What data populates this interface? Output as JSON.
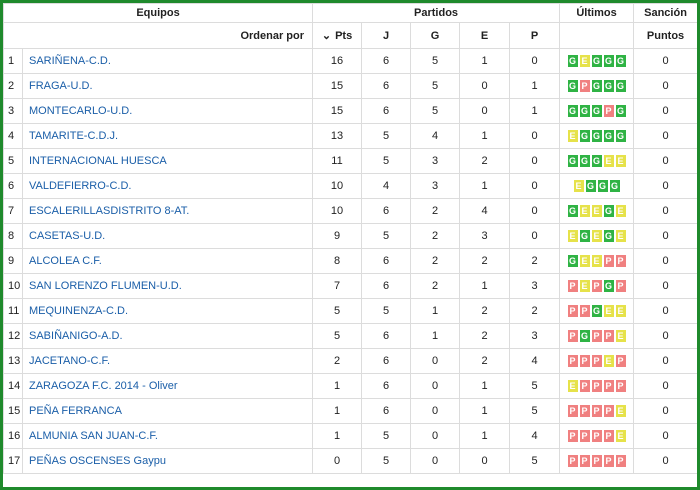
{
  "headers": {
    "equipos": "Equipos",
    "partidos": "Partidos",
    "ultimos": "Últimos",
    "sancion": "Sanción",
    "ordenar_por": "Ordenar por",
    "pts": "Pts",
    "j": "J",
    "g": "G",
    "e": "E",
    "p": "P",
    "puntos": "Puntos"
  },
  "colors": {
    "G": "#2fb344",
    "E": "#e6e24a",
    "P": "#f08080",
    "link": "#1a5ea8",
    "frame": "#1f8a2c"
  },
  "rows": [
    {
      "pos": "1",
      "team": "SARIÑENA-C.D.",
      "pts": "16",
      "j": "6",
      "g": "5",
      "e": "1",
      "p": "0",
      "last": [
        "G",
        "E",
        "G",
        "G",
        "G"
      ],
      "puntos": "0"
    },
    {
      "pos": "2",
      "team": "FRAGA-U.D.",
      "pts": "15",
      "j": "6",
      "g": "5",
      "e": "0",
      "p": "1",
      "last": [
        "G",
        "P",
        "G",
        "G",
        "G"
      ],
      "puntos": "0"
    },
    {
      "pos": "3",
      "team": "MONTECARLO-U.D.",
      "pts": "15",
      "j": "6",
      "g": "5",
      "e": "0",
      "p": "1",
      "last": [
        "G",
        "G",
        "G",
        "P",
        "G"
      ],
      "puntos": "0"
    },
    {
      "pos": "4",
      "team": "TAMARITE-C.D.J.",
      "pts": "13",
      "j": "5",
      "g": "4",
      "e": "1",
      "p": "0",
      "last": [
        "E",
        "G",
        "G",
        "G",
        "G"
      ],
      "puntos": "0"
    },
    {
      "pos": "5",
      "team": "INTERNACIONAL HUESCA",
      "pts": "11",
      "j": "5",
      "g": "3",
      "e": "2",
      "p": "0",
      "last": [
        "G",
        "G",
        "G",
        "E",
        "E"
      ],
      "puntos": "0"
    },
    {
      "pos": "6",
      "team": "VALDEFIERRO-C.D.",
      "pts": "10",
      "j": "4",
      "g": "3",
      "e": "1",
      "p": "0",
      "last": [
        "E",
        "G",
        "G",
        "G"
      ],
      "puntos": "0"
    },
    {
      "pos": "7",
      "team": "ESCALERILLASDISTRITO 8-AT.",
      "pts": "10",
      "j": "6",
      "g": "2",
      "e": "4",
      "p": "0",
      "last": [
        "G",
        "E",
        "E",
        "G",
        "E"
      ],
      "puntos": "0"
    },
    {
      "pos": "8",
      "team": "CASETAS-U.D.",
      "pts": "9",
      "j": "5",
      "g": "2",
      "e": "3",
      "p": "0",
      "last": [
        "E",
        "G",
        "E",
        "G",
        "E"
      ],
      "puntos": "0"
    },
    {
      "pos": "9",
      "team": "ALCOLEA C.F.",
      "pts": "8",
      "j": "6",
      "g": "2",
      "e": "2",
      "p": "2",
      "last": [
        "G",
        "E",
        "E",
        "P",
        "P"
      ],
      "puntos": "0"
    },
    {
      "pos": "10",
      "team": "SAN LORENZO FLUMEN-U.D.",
      "pts": "7",
      "j": "6",
      "g": "2",
      "e": "1",
      "p": "3",
      "last": [
        "P",
        "E",
        "P",
        "G",
        "P"
      ],
      "puntos": "0"
    },
    {
      "pos": "11",
      "team": "MEQUINENZA-C.D.",
      "pts": "5",
      "j": "5",
      "g": "1",
      "e": "2",
      "p": "2",
      "last": [
        "P",
        "P",
        "G",
        "E",
        "E"
      ],
      "puntos": "0"
    },
    {
      "pos": "12",
      "team": "SABIÑANIGO-A.D.",
      "pts": "5",
      "j": "6",
      "g": "1",
      "e": "2",
      "p": "3",
      "last": [
        "P",
        "G",
        "P",
        "P",
        "E"
      ],
      "puntos": "0"
    },
    {
      "pos": "13",
      "team": "JACETANO-C.F.",
      "pts": "2",
      "j": "6",
      "g": "0",
      "e": "2",
      "p": "4",
      "last": [
        "P",
        "P",
        "P",
        "E",
        "P"
      ],
      "puntos": "0"
    },
    {
      "pos": "14",
      "team": "ZARAGOZA F.C. 2014 - Oliver",
      "pts": "1",
      "j": "6",
      "g": "0",
      "e": "1",
      "p": "5",
      "last": [
        "E",
        "P",
        "P",
        "P",
        "P"
      ],
      "puntos": "0"
    },
    {
      "pos": "15",
      "team": "PEÑA FERRANCA",
      "pts": "1",
      "j": "6",
      "g": "0",
      "e": "1",
      "p": "5",
      "last": [
        "P",
        "P",
        "P",
        "P",
        "E"
      ],
      "puntos": "0"
    },
    {
      "pos": "16",
      "team": "ALMUNIA SAN JUAN-C.F.",
      "pts": "1",
      "j": "5",
      "g": "0",
      "e": "1",
      "p": "4",
      "last": [
        "P",
        "P",
        "P",
        "P",
        "E"
      ],
      "puntos": "0"
    },
    {
      "pos": "17",
      "team": "PEÑAS OSCENSES Gaypu",
      "pts": "0",
      "j": "5",
      "g": "0",
      "e": "0",
      "p": "5",
      "last": [
        "P",
        "P",
        "P",
        "P",
        "P"
      ],
      "puntos": "0"
    }
  ]
}
